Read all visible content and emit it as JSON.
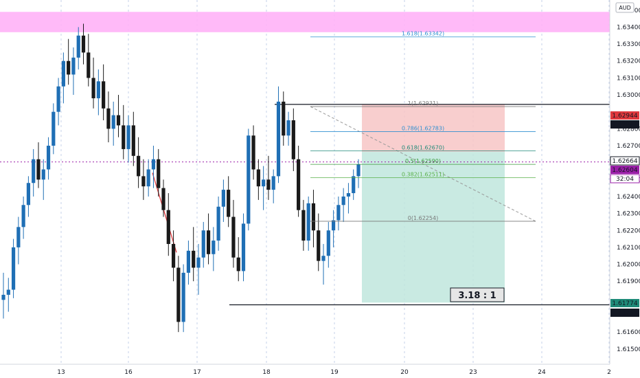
{
  "currency_label": "AUD",
  "rr_box_label": "3.18 : 1",
  "colors": {
    "up": "#1f6fb5",
    "down": "#1a1a1a",
    "supply_zone": "#ffb3f7",
    "stop_zone": "#f7c6c6",
    "target_zone": "#bfe6dd",
    "price_line": "#9b1fa8",
    "red_badge": "#e0393e",
    "purple_badge": "#9b1fa8",
    "teal_badge": "#1e8a78",
    "black_badge": "#131722"
  },
  "chart_data": {
    "type": "candlestick",
    "x_ticks": [
      "13",
      "16",
      "17",
      "18",
      "19",
      "20",
      "23",
      "24",
      "2"
    ],
    "y_ticks": [
      "1.63500",
      "1.63400",
      "1.63300",
      "1.63200",
      "1.63100",
      "1.63000",
      "1.62800",
      "1.62700",
      "1.62500",
      "1.62400",
      "1.62300",
      "1.62200",
      "1.62100",
      "1.62000",
      "1.61900",
      "1.61600",
      "1.61500"
    ],
    "ylim": [
      1.6141,
      1.6356
    ],
    "price_badges": [
      {
        "value": "1.62944",
        "color": "red"
      },
      {
        "value": "1.62944",
        "color": "black"
      },
      {
        "value": "1.62664",
        "color": "black_outline"
      },
      {
        "value": "1.62604",
        "color": "purple"
      },
      {
        "value": "32:04",
        "color": "purple_light"
      },
      {
        "value": "1.61774",
        "color": "teal"
      },
      {
        "value": "1.61761",
        "color": "black"
      }
    ],
    "fib_levels": [
      {
        "label": "1.618(1.63342)",
        "price": 1.63342,
        "color": "#2f8fd0"
      },
      {
        "label": "1(1.62931)",
        "price": 1.62931,
        "color": "#777777"
      },
      {
        "label": "0.786(1.62783)",
        "price": 1.62783,
        "color": "#2f8fd0"
      },
      {
        "label": "0.618(1.62670)",
        "price": 1.6267,
        "color": "#1e8a78"
      },
      {
        "label": "0.5(1.62590)",
        "price": 1.6259,
        "color": "#3a9a3a"
      },
      {
        "label": "0.382(1.62511)",
        "price": 1.62511,
        "color": "#5ab04a"
      },
      {
        "label": "0(1.62254)",
        "price": 1.62254,
        "color": "#777777"
      }
    ],
    "supply_zone": {
      "low": 1.6337,
      "high": 1.6349
    },
    "risk_reward": {
      "entry": 1.62664,
      "stop": 1.62944,
      "target": 1.61774
    },
    "horizontal_lines": [
      1.62944,
      1.61761
    ],
    "current_price": 1.62604,
    "candles": [
      [
        1.6179,
        1.6195,
        1.6168,
        1.6182
      ],
      [
        1.6182,
        1.6192,
        1.6172,
        1.6185
      ],
      [
        1.6185,
        1.6215,
        1.618,
        1.621
      ],
      [
        1.621,
        1.6228,
        1.62,
        1.6222
      ],
      [
        1.6222,
        1.624,
        1.6215,
        1.6235
      ],
      [
        1.6235,
        1.6252,
        1.6228,
        1.6248
      ],
      [
        1.6248,
        1.6268,
        1.624,
        1.6262
      ],
      [
        1.6262,
        1.6272,
        1.6245,
        1.625
      ],
      [
        1.625,
        1.6262,
        1.6238,
        1.6256
      ],
      [
        1.6256,
        1.6275,
        1.625,
        1.627
      ],
      [
        1.627,
        1.6295,
        1.6265,
        1.629
      ],
      [
        1.629,
        1.631,
        1.6282,
        1.6305
      ],
      [
        1.6305,
        1.6325,
        1.6295,
        1.632
      ],
      [
        1.632,
        1.6333,
        1.6306,
        1.6312
      ],
      [
        1.6312,
        1.6328,
        1.63,
        1.6322
      ],
      [
        1.6322,
        1.634,
        1.6315,
        1.6335
      ],
      [
        1.6335,
        1.6342,
        1.6318,
        1.6325
      ],
      [
        1.6325,
        1.6336,
        1.6305,
        1.631
      ],
      [
        1.631,
        1.6322,
        1.6292,
        1.6298
      ],
      [
        1.6298,
        1.6315,
        1.6288,
        1.6308
      ],
      [
        1.6308,
        1.6318,
        1.6285,
        1.6292
      ],
      [
        1.6292,
        1.6302,
        1.6272,
        1.628
      ],
      [
        1.628,
        1.6296,
        1.627,
        1.6288
      ],
      [
        1.6288,
        1.63,
        1.6275,
        1.6282
      ],
      [
        1.6282,
        1.6294,
        1.6262,
        1.6268
      ],
      [
        1.6268,
        1.6288,
        1.626,
        1.6282
      ],
      [
        1.6282,
        1.629,
        1.6258,
        1.6264
      ],
      [
        1.6264,
        1.6275,
        1.6245,
        1.6252
      ],
      [
        1.6252,
        1.6262,
        1.6238,
        1.6246
      ],
      [
        1.6246,
        1.6262,
        1.624,
        1.6256
      ],
      [
        1.6256,
        1.627,
        1.6245,
        1.6262
      ],
      [
        1.6262,
        1.6268,
        1.624,
        1.6245
      ],
      [
        1.6245,
        1.625,
        1.6228,
        1.6232
      ],
      [
        1.6232,
        1.6242,
        1.6205,
        1.6212
      ],
      [
        1.6212,
        1.622,
        1.619,
        1.6198
      ],
      [
        1.6198,
        1.6205,
        1.616,
        1.6166
      ],
      [
        1.6166,
        1.62,
        1.616,
        1.6195
      ],
      [
        1.6195,
        1.6214,
        1.6188,
        1.6208
      ],
      [
        1.6208,
        1.6222,
        1.619,
        1.6198
      ],
      [
        1.6198,
        1.6212,
        1.6182,
        1.6204
      ],
      [
        1.6204,
        1.6225,
        1.6198,
        1.622
      ],
      [
        1.622,
        1.623,
        1.62,
        1.6206
      ],
      [
        1.6206,
        1.6222,
        1.6196,
        1.6214
      ],
      [
        1.6214,
        1.624,
        1.6208,
        1.6234
      ],
      [
        1.6234,
        1.625,
        1.6225,
        1.6244
      ],
      [
        1.6244,
        1.6252,
        1.6222,
        1.6228
      ],
      [
        1.6228,
        1.6238,
        1.6198,
        1.6204
      ],
      [
        1.6204,
        1.6216,
        1.619,
        1.6196
      ],
      [
        1.6196,
        1.623,
        1.619,
        1.6224
      ],
      [
        1.6224,
        1.628,
        1.622,
        1.6276
      ],
      [
        1.6276,
        1.6282,
        1.625,
        1.6256
      ],
      [
        1.6256,
        1.6262,
        1.6238,
        1.6246
      ],
      [
        1.6246,
        1.6258,
        1.6232,
        1.625
      ],
      [
        1.625,
        1.6264,
        1.6238,
        1.6244
      ],
      [
        1.6244,
        1.6256,
        1.6236,
        1.6252
      ],
      [
        1.6252,
        1.6305,
        1.6248,
        1.6296
      ],
      [
        1.6296,
        1.6302,
        1.627,
        1.6276
      ],
      [
        1.6276,
        1.629,
        1.627,
        1.6285
      ],
      [
        1.6285,
        1.6292,
        1.6255,
        1.6262
      ],
      [
        1.6262,
        1.627,
        1.6228,
        1.6232
      ],
      [
        1.6232,
        1.6238,
        1.6208,
        1.6214
      ],
      [
        1.6214,
        1.624,
        1.6208,
        1.6236
      ],
      [
        1.6236,
        1.6244,
        1.621,
        1.622
      ],
      [
        1.622,
        1.623,
        1.6196,
        1.6202
      ],
      [
        1.6202,
        1.6212,
        1.6188,
        1.6205
      ],
      [
        1.6205,
        1.6225,
        1.6198,
        1.622
      ],
      [
        1.622,
        1.6232,
        1.621,
        1.6226
      ],
      [
        1.6226,
        1.624,
        1.622,
        1.6235
      ],
      [
        1.6235,
        1.6245,
        1.6225,
        1.624
      ],
      [
        1.624,
        1.6248,
        1.623,
        1.6242
      ],
      [
        1.6242,
        1.6256,
        1.6238,
        1.6252
      ],
      [
        1.6252,
        1.6262,
        1.6245,
        1.6259
      ]
    ]
  }
}
